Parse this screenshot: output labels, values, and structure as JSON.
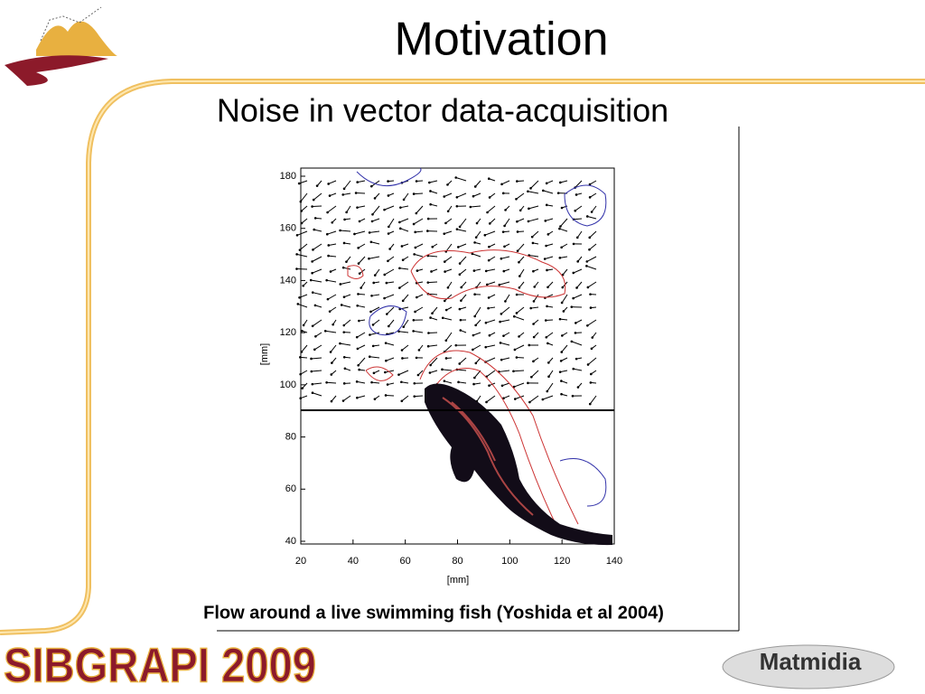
{
  "slide": {
    "title": "Motivation",
    "subtitle": "Noise in vector data-acquisition",
    "figure": {
      "xticks": [
        20,
        40,
        60,
        80,
        100,
        120,
        140
      ],
      "yticks": [
        40,
        60,
        80,
        100,
        120,
        140,
        160,
        180
      ],
      "xlabel": "[mm]",
      "ylabel": "[mm]",
      "caption": "Flow around a live swimming fish (Yoshida et al 2004)"
    },
    "footer": {
      "conference": "SIBGRAPI 2009",
      "logo": "Matmidia"
    }
  }
}
